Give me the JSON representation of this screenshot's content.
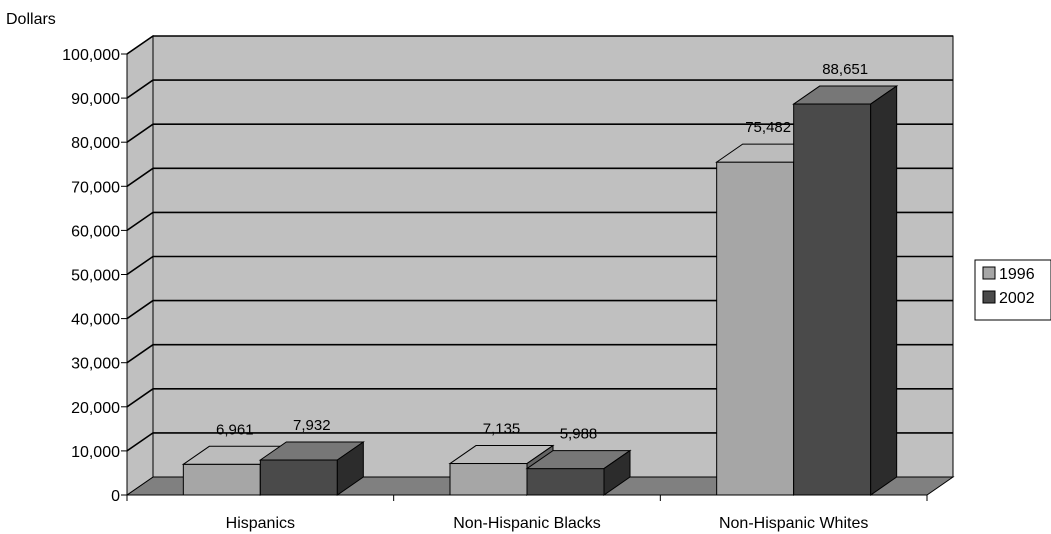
{
  "chart_data": {
    "type": "bar",
    "ylabel": "Dollars",
    "xlabel": "",
    "categories": [
      "Hispanics",
      "Non-Hispanic Blacks",
      "Non-Hispanic Whites"
    ],
    "series": [
      {
        "name": "1996",
        "values": [
          6961,
          7135,
          75482
        ],
        "labels": [
          "6,961",
          "7,135",
          "75,482"
        ],
        "color": "#a6a6a6"
      },
      {
        "name": "2002",
        "values": [
          7932,
          5988,
          88651
        ],
        "labels": [
          "7,932",
          "5,988",
          "88,651"
        ],
        "color": "#4a4a4a"
      }
    ],
    "ylim": [
      0,
      100000
    ],
    "yticks": [
      0,
      10000,
      20000,
      30000,
      40000,
      50000,
      60000,
      70000,
      80000,
      90000,
      100000
    ],
    "ytick_labels": [
      "0",
      "10,000",
      "20,000",
      "30,000",
      "40,000",
      "50,000",
      "60,000",
      "70,000",
      "80,000",
      "90,000",
      "100,000"
    ],
    "grid": true,
    "legend_position": "right",
    "style": "3d-bar",
    "wall_color": "#c0c0c0",
    "floor_color": "#808080"
  }
}
